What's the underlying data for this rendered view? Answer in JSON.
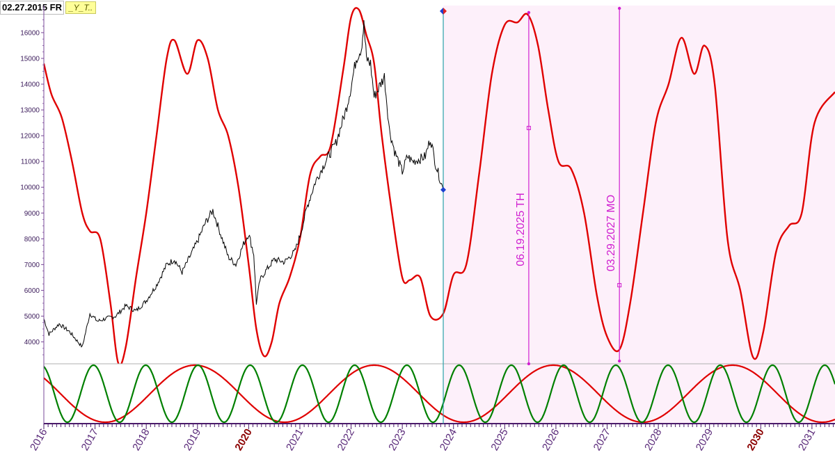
{
  "header": {
    "date_label": "02.27.2015 FR",
    "symbol_tag": "_Y_T.."
  },
  "chart_data": {
    "type": "line",
    "x_axis": {
      "range": [
        2016.0,
        2031.45
      ],
      "year_labels": [
        "2016",
        "2017",
        "2018",
        "2019",
        "2020",
        "2021",
        "2022",
        "2023",
        "2024",
        "2025",
        "2026",
        "2027",
        "2028",
        "2029",
        "2030",
        "2031"
      ],
      "bold_years": [
        "2020",
        "2030"
      ]
    },
    "y_axis": {
      "range": [
        3150,
        17050
      ],
      "ticks": [
        4000,
        5000,
        6000,
        7000,
        8000,
        9000,
        10000,
        11000,
        12000,
        13000,
        14000,
        15000,
        16000
      ]
    },
    "markers": {
      "today_date": 2023.8,
      "forecast_shading": "light pink region after the current date"
    },
    "annotations": [
      {
        "date": 2025.47,
        "label": "06.19.2025 TH"
      },
      {
        "date": 2027.24,
        "label": "03.29.2027 MO"
      }
    ],
    "price_series": {
      "name": "",
      "color": "#000000",
      "x": [
        2016.0,
        2016.1,
        2016.3,
        2016.5,
        2016.75,
        2016.9,
        2017.05,
        2017.2,
        2017.4,
        2017.6,
        2017.8,
        2018.0,
        2018.2,
        2018.4,
        2018.55,
        2018.7,
        2018.85,
        2019.0,
        2019.15,
        2019.3,
        2019.45,
        2019.6,
        2019.75,
        2019.9,
        2020.0,
        2020.1,
        2020.15,
        2020.22,
        2020.35,
        2020.5,
        2020.7,
        2020.9,
        2021.0,
        2021.15,
        2021.3,
        2021.5,
        2021.7,
        2021.9,
        2022.0,
        2022.1,
        2022.2,
        2022.25,
        2022.3,
        2022.38,
        2022.45,
        2022.55,
        2022.65,
        2022.75,
        2022.85,
        2023.0,
        2023.1,
        2023.2,
        2023.35,
        2023.45,
        2023.55,
        2023.65,
        2023.8
      ],
      "values": [
        4900,
        4300,
        4700,
        4400,
        3800,
        5100,
        4800,
        4900,
        5000,
        5400,
        5200,
        5600,
        6200,
        7000,
        7200,
        6700,
        7300,
        7900,
        8600,
        9100,
        8200,
        7300,
        7000,
        7800,
        8200,
        7400,
        5500,
        6400,
        6800,
        7200,
        7100,
        7500,
        8100,
        9300,
        10200,
        11000,
        11700,
        13000,
        13900,
        15000,
        15400,
        16300,
        15000,
        14800,
        13500,
        13900,
        14300,
        12200,
        11400,
        10600,
        11200,
        11000,
        11100,
        11200,
        11900,
        10900,
        9900
      ]
    },
    "composite_cycle": {
      "name": "",
      "color": "#e00000",
      "x": [
        2016.0,
        2016.15,
        2016.35,
        2016.55,
        2016.75,
        2016.9,
        2017.1,
        2017.3,
        2017.45,
        2017.6,
        2017.8,
        2018.0,
        2018.2,
        2018.4,
        2018.55,
        2018.8,
        2019.0,
        2019.2,
        2019.4,
        2019.6,
        2019.8,
        2020.0,
        2020.15,
        2020.3,
        2020.45,
        2020.6,
        2020.8,
        2021.0,
        2021.2,
        2021.4,
        2021.6,
        2021.85,
        2022.0,
        2022.15,
        2022.3,
        2022.45,
        2022.6,
        2022.8,
        2023.0,
        2023.15,
        2023.35,
        2023.55,
        2023.8,
        2024.0,
        2024.25,
        2024.5,
        2024.75,
        2025.0,
        2025.25,
        2025.45,
        2025.65,
        2025.85,
        2026.05,
        2026.3,
        2026.55,
        2026.8,
        2027.0,
        2027.24,
        2027.45,
        2027.7,
        2027.95,
        2028.2,
        2028.45,
        2028.7,
        2028.9,
        2029.1,
        2029.35,
        2029.6,
        2029.85,
        2030.05,
        2030.3,
        2030.55,
        2030.8,
        2031.05,
        2031.45
      ],
      "values": [
        14800,
        13600,
        12700,
        11000,
        9000,
        8300,
        8000,
        5500,
        3200,
        3800,
        6500,
        9000,
        12000,
        15000,
        15700,
        14400,
        15700,
        15000,
        13000,
        12000,
        10000,
        7000,
        4500,
        3450,
        4000,
        5500,
        6500,
        8000,
        10500,
        11200,
        11600,
        14600,
        16600,
        16900,
        15900,
        14800,
        12000,
        9000,
        6500,
        6400,
        6500,
        5000,
        5100,
        6600,
        7000,
        10500,
        14400,
        16300,
        16400,
        16700,
        15500,
        13000,
        11000,
        10700,
        9000,
        5800,
        4200,
        3700,
        5500,
        9000,
        12500,
        14000,
        15800,
        14400,
        15500,
        14000,
        8000,
        6000,
        3400,
        4400,
        7500,
        8500,
        9000,
        12500,
        13700
      ]
    },
    "lower_panel": {
      "series": [
        {
          "name": "",
          "color": "#e00000",
          "period_years": 3.5,
          "peak_year": 2018.95
        },
        {
          "name": "",
          "color": "#008000",
          "period_years": 1.02,
          "peak_year": 2016.97
        }
      ]
    }
  }
}
